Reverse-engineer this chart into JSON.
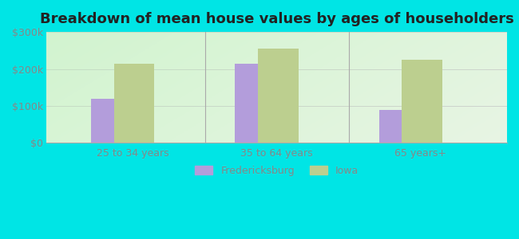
{
  "title": "Breakdown of mean house values by ages of householders",
  "categories": [
    "25 to 34 years",
    "35 to 64 years",
    "65 years+"
  ],
  "fredericksburg_values": [
    120000,
    215000,
    90000
  ],
  "iowa_values": [
    215000,
    255000,
    225000
  ],
  "fredericksburg_color": "#b39ddb",
  "iowa_color": "#bccf8f",
  "bar_width": 0.28,
  "bar_gap": 0.02,
  "ylim": [
    0,
    300000
  ],
  "yticks": [
    0,
    100000,
    200000,
    300000
  ],
  "ytick_labels": [
    "$0",
    "$100k",
    "$200k",
    "$300k"
  ],
  "legend_labels": [
    "Fredericksburg",
    "Iowa"
  ],
  "figure_bg_color": "#00e5e5",
  "plot_bg_color": "#e8f5e4",
  "title_fontsize": 13,
  "tick_fontsize": 9,
  "legend_fontsize": 9,
  "title_color": "#222222",
  "tick_color": "#888888",
  "separator_color": "#aaaaaa"
}
